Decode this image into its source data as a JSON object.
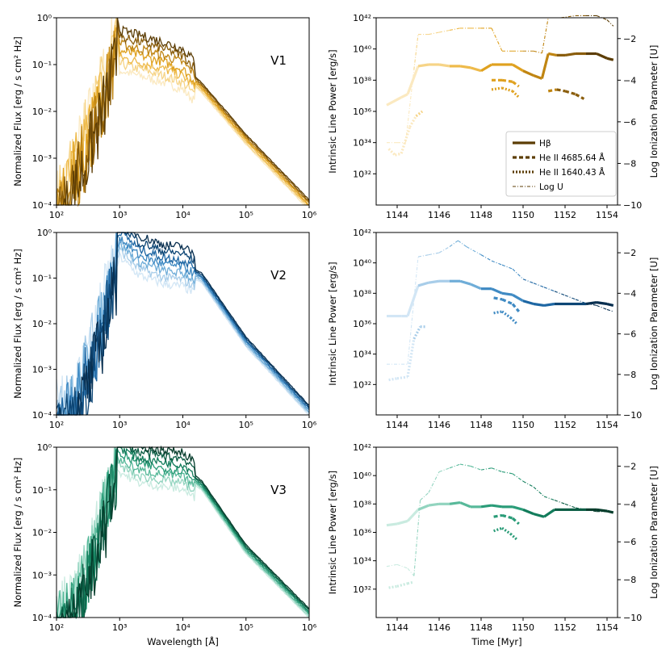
{
  "colors": {
    "V1": [
      "#fbe9c0",
      "#f6d487",
      "#eeba4a",
      "#dfa11f",
      "#c08512",
      "#8a5d0c",
      "#5c3d05"
    ],
    "V2": [
      "#d2e6f5",
      "#a8cde9",
      "#6fadd8",
      "#3f8ac3",
      "#1d66a3",
      "#0d4675",
      "#082f50"
    ],
    "V3": [
      "#c9ebe0",
      "#92d4bf",
      "#58b99a",
      "#2a9c78",
      "#127c5b",
      "#0a5c43",
      "#063d2c"
    ]
  },
  "legend": {
    "items": [
      {
        "label": "Hβ",
        "style": "solid"
      },
      {
        "label": "He II 4685.64 Å",
        "style": "dashed"
      },
      {
        "label": "He II 1640.43 Å",
        "style": "dotted"
      },
      {
        "label": "Log U",
        "style": "dashdot"
      }
    ]
  },
  "chart_data": [
    {
      "type": "line",
      "panel": "sed",
      "variant": "V1",
      "label": "V1",
      "xlabel": "",
      "ylabel": "Normalized Flux [erg / s cm² Hz]",
      "xscale": "log",
      "yscale": "log",
      "xlim": [
        100,
        1000000
      ],
      "ylim": [
        0.0001,
        1
      ],
      "xticks": [
        "10²",
        "10³",
        "10⁴",
        "10⁵",
        "10⁶"
      ],
      "yticks": [
        "10⁻⁴",
        "10⁻³",
        "10⁻²",
        "10⁻¹",
        "10⁰"
      ],
      "series_count": 7,
      "feature": {
        "uv_peak": 0.8,
        "edge": 912,
        "hard_band_min": 0.0001
      },
      "x": [
        100,
        200,
        500,
        912,
        1000,
        2000,
        5000,
        10000,
        20000,
        100000,
        1000000
      ],
      "series_envelope_log": [
        -4.0,
        -3.0,
        -1.5,
        -0.2,
        -0.7,
        -0.8,
        -0.95,
        -1.1,
        -1.5,
        -2.6,
        -4.0
      ]
    },
    {
      "type": "line",
      "panel": "lines",
      "variant": "V1",
      "xlabel": "",
      "ylabel": "Intrinsic Line Power [erg/s]",
      "y2label": "Log Ionization Parameter [U]",
      "xlim": [
        1143,
        1154.5
      ],
      "ylim_log": [
        30,
        42
      ],
      "y2lim": [
        -10,
        -1
      ],
      "xticks": [
        1144,
        1146,
        1148,
        1150,
        1152,
        1154
      ],
      "yticks": [
        "10³²",
        "10³⁴",
        "10³⁶",
        "10³⁸",
        "10⁴⁰",
        "10⁴²"
      ],
      "y2ticks": [
        -10,
        -8,
        -6,
        -4,
        -2
      ],
      "hbeta": {
        "x": [
          1143.5,
          1144.2,
          1144.5,
          1145.0,
          1145.5,
          1146.0,
          1146.5,
          1147.0,
          1147.5,
          1148.0,
          1148.5,
          1149.0,
          1149.5,
          1150.0,
          1150.5,
          1150.9,
          1151.2,
          1151.6,
          1152.0,
          1152.5,
          1153.0,
          1153.5,
          1154.0,
          1154.3
        ],
        "log": [
          36.4,
          36.9,
          37.1,
          38.9,
          39.0,
          39.0,
          38.9,
          38.9,
          38.8,
          38.6,
          39.0,
          39.0,
          39.0,
          38.6,
          38.3,
          38.1,
          39.7,
          39.6,
          39.6,
          39.7,
          39.7,
          39.7,
          39.4,
          39.3
        ]
      },
      "heii4686": [
        {
          "x": [
            1148.5,
            1149.0,
            1149.5,
            1149.8
          ],
          "log": [
            38.0,
            38.0,
            37.9,
            37.6
          ]
        },
        {
          "x": [
            1151.2,
            1151.6,
            1152.0,
            1152.5,
            1152.9
          ],
          "log": [
            37.3,
            37.4,
            37.3,
            37.1,
            36.8
          ]
        }
      ],
      "heii1640": [
        {
          "x": [
            1143.6,
            1143.9,
            1144.2,
            1144.6,
            1144.9,
            1145.2
          ],
          "log": [
            33.6,
            33.2,
            33.3,
            35.0,
            35.7,
            36.0
          ]
        },
        {
          "x": [
            1148.5,
            1149.0,
            1149.5,
            1149.8
          ],
          "log": [
            37.4,
            37.5,
            37.3,
            36.9
          ]
        }
      ],
      "logU": {
        "x": [
          1143.5,
          1144.0,
          1144.4,
          1144.8,
          1145.0,
          1145.5,
          1146.0,
          1146.5,
          1147.0,
          1147.5,
          1148.0,
          1148.5,
          1149.0,
          1149.5,
          1150.0,
          1150.5,
          1150.9,
          1151.2,
          1151.8,
          1152.5,
          1153.0,
          1153.5,
          1154.0,
          1154.3
        ],
        "values": [
          -7.0,
          -7.0,
          -7.0,
          -3.5,
          -1.8,
          -1.8,
          -1.7,
          -1.6,
          -1.5,
          -1.5,
          -1.5,
          -1.5,
          -2.6,
          -2.6,
          -2.6,
          -2.6,
          -2.7,
          -1.0,
          -1.0,
          -0.9,
          -0.9,
          -0.9,
          -1.1,
          -1.4
        ]
      }
    },
    {
      "type": "line",
      "panel": "sed",
      "variant": "V2",
      "label": "V2",
      "xlabel": "",
      "ylabel": "Normalized Flux [erg / s cm² Hz]",
      "xscale": "log",
      "yscale": "log",
      "xlim": [
        100,
        1000000
      ],
      "ylim": [
        0.0001,
        1
      ],
      "xticks": [
        "10²",
        "10³",
        "10⁴",
        "10⁵",
        "10⁶"
      ],
      "yticks": [
        "10⁻⁴",
        "10⁻³",
        "10⁻²",
        "10⁻¹",
        "10⁰"
      ],
      "series_count": 7,
      "feature": {
        "uv_peak": 0.9,
        "edge": 912,
        "hard_band_min": 0.0001
      },
      "x": [
        100,
        200,
        500,
        912,
        1000,
        2000,
        5000,
        10000,
        20000,
        100000,
        1000000
      ],
      "series_envelope_log": [
        -4.0,
        -3.5,
        -1.8,
        -0.3,
        -0.1,
        -0.5,
        -0.7,
        -0.75,
        -1.0,
        -2.4,
        -3.9
      ]
    },
    {
      "type": "line",
      "panel": "lines",
      "variant": "V2",
      "xlabel": "",
      "ylabel": "Intrinsic Line Power [erg/s]",
      "y2label": "Log Ionization Parameter [U]",
      "xlim": [
        1143,
        1154.5
      ],
      "ylim_log": [
        30,
        42
      ],
      "y2lim": [
        -10,
        -1
      ],
      "xticks": [
        1144,
        1146,
        1148,
        1150,
        1152,
        1154
      ],
      "yticks": [
        "10³²",
        "10³⁴",
        "10³⁶",
        "10³⁸",
        "10⁴⁰",
        "10⁴²"
      ],
      "y2ticks": [
        -10,
        -8,
        -6,
        -4,
        -2
      ],
      "hbeta": {
        "x": [
          1143.5,
          1144.2,
          1144.5,
          1145.0,
          1145.5,
          1146.0,
          1146.5,
          1147.0,
          1147.5,
          1148.0,
          1148.5,
          1149.0,
          1149.5,
          1150.0,
          1150.5,
          1151.0,
          1151.5,
          1152.0,
          1152.5,
          1153.0,
          1153.5,
          1154.0,
          1154.3
        ],
        "log": [
          36.5,
          36.5,
          36.5,
          38.5,
          38.7,
          38.8,
          38.8,
          38.8,
          38.6,
          38.3,
          38.3,
          38.0,
          37.9,
          37.5,
          37.3,
          37.2,
          37.3,
          37.3,
          37.3,
          37.3,
          37.4,
          37.3,
          37.2
        ]
      },
      "heii4686": [
        {
          "x": [
            1148.6,
            1149.0,
            1149.5,
            1149.8
          ],
          "log": [
            37.7,
            37.6,
            37.3,
            36.8
          ]
        }
      ],
      "heii1640": [
        {
          "x": [
            1143.6,
            1144.0,
            1144.5,
            1144.8,
            1145.1,
            1145.4
          ],
          "log": [
            32.3,
            32.4,
            32.5,
            35.0,
            35.8,
            35.8
          ]
        },
        {
          "x": [
            1148.6,
            1149.0,
            1149.4,
            1149.7
          ],
          "log": [
            36.7,
            36.8,
            36.4,
            36.0
          ]
        }
      ],
      "logU": {
        "x": [
          1143.5,
          1144.2,
          1144.5,
          1145.0,
          1145.5,
          1146.0,
          1146.5,
          1146.9,
          1147.3,
          1148.0,
          1148.5,
          1149.0,
          1149.5,
          1150.0,
          1150.5,
          1151.0,
          1151.5,
          1152.0,
          1152.5,
          1153.0,
          1153.5,
          1154.0,
          1154.3
        ],
        "values": [
          -7.5,
          -7.5,
          -7.5,
          -2.2,
          -2.1,
          -2.0,
          -1.7,
          -1.4,
          -1.7,
          -2.1,
          -2.4,
          -2.6,
          -2.8,
          -3.3,
          -3.5,
          -3.7,
          -3.9,
          -4.1,
          -4.3,
          -4.5,
          -4.6,
          -4.8,
          -4.9
        ]
      }
    },
    {
      "type": "line",
      "panel": "sed",
      "variant": "V3",
      "label": "V3",
      "xlabel": "Wavelength [Å]",
      "ylabel": "Normalized Flux [erg / s cm² Hz]",
      "xscale": "log",
      "yscale": "log",
      "xlim": [
        100,
        1000000
      ],
      "ylim": [
        0.0001,
        1
      ],
      "xticks": [
        "10²",
        "10³",
        "10⁴",
        "10⁵",
        "10⁶"
      ],
      "yticks": [
        "10⁻⁴",
        "10⁻³",
        "10⁻²",
        "10⁻¹",
        "10⁰"
      ],
      "series_count": 7,
      "feature": {
        "uv_peak": 0.85,
        "edge": 912,
        "hard_band_min": 0.0001
      },
      "x": [
        100,
        200,
        500,
        912,
        1000,
        2000,
        5000,
        10000,
        20000,
        100000,
        1000000
      ],
      "series_envelope_log": [
        -4.0,
        -3.5,
        -1.6,
        -0.1,
        -0.15,
        -0.4,
        -0.5,
        -0.55,
        -0.9,
        -2.4,
        -3.9
      ]
    },
    {
      "type": "line",
      "panel": "lines",
      "variant": "V3",
      "xlabel": "Time [Myr]",
      "ylabel": "Intrinsic Line Power [erg/s]",
      "y2label": "Log Ionization Parameter [U]",
      "xlim": [
        1143,
        1154.5
      ],
      "ylim_log": [
        30,
        42
      ],
      "y2lim": [
        -10,
        -1
      ],
      "xticks": [
        1144,
        1146,
        1148,
        1150,
        1152,
        1154
      ],
      "yticks": [
        "10³²",
        "10³⁴",
        "10³⁶",
        "10³⁸",
        "10⁴⁰",
        "10⁴²"
      ],
      "y2ticks": [
        -10,
        -8,
        -6,
        -4,
        -2
      ],
      "hbeta": {
        "x": [
          1143.5,
          1144.0,
          1144.5,
          1145.0,
          1145.5,
          1146.0,
          1146.5,
          1147.0,
          1147.5,
          1148.0,
          1148.5,
          1149.0,
          1149.5,
          1150.0,
          1150.5,
          1151.0,
          1151.5,
          1152.0,
          1152.5,
          1153.0,
          1153.5,
          1154.0,
          1154.3
        ],
        "log": [
          36.5,
          36.6,
          36.8,
          37.6,
          37.9,
          38.0,
          38.0,
          38.1,
          37.8,
          37.8,
          37.9,
          37.8,
          37.8,
          37.6,
          37.3,
          37.1,
          37.6,
          37.6,
          37.6,
          37.6,
          37.6,
          37.5,
          37.4
        ]
      },
      "heii4686": [
        {
          "x": [
            1148.6,
            1149.0,
            1149.5,
            1149.8
          ],
          "log": [
            37.1,
            37.2,
            37.0,
            36.6
          ]
        }
      ],
      "heii1640": [
        {
          "x": [
            1143.6,
            1144.0,
            1144.5,
            1144.8
          ],
          "log": [
            32.1,
            32.2,
            32.4,
            32.5
          ]
        },
        {
          "x": [
            1148.6,
            1149.0,
            1149.4,
            1149.7
          ],
          "log": [
            36.1,
            36.3,
            35.9,
            35.5
          ]
        }
      ],
      "logU": {
        "x": [
          1143.5,
          1144.0,
          1144.5,
          1144.8,
          1145.1,
          1145.5,
          1146.0,
          1146.5,
          1147.0,
          1147.5,
          1148.0,
          1148.5,
          1149.0,
          1149.5,
          1150.0,
          1150.5,
          1151.0,
          1151.5,
          1152.0,
          1152.5,
          1153.0,
          1153.5,
          1154.0,
          1154.3
        ],
        "values": [
          -7.3,
          -7.2,
          -7.4,
          -7.8,
          -3.8,
          -3.4,
          -2.3,
          -2.1,
          -1.9,
          -2.0,
          -2.2,
          -2.1,
          -2.3,
          -2.4,
          -2.8,
          -3.1,
          -3.6,
          -3.8,
          -4.0,
          -4.2,
          -4.3,
          -4.4,
          -4.4,
          -4.5
        ]
      }
    }
  ]
}
